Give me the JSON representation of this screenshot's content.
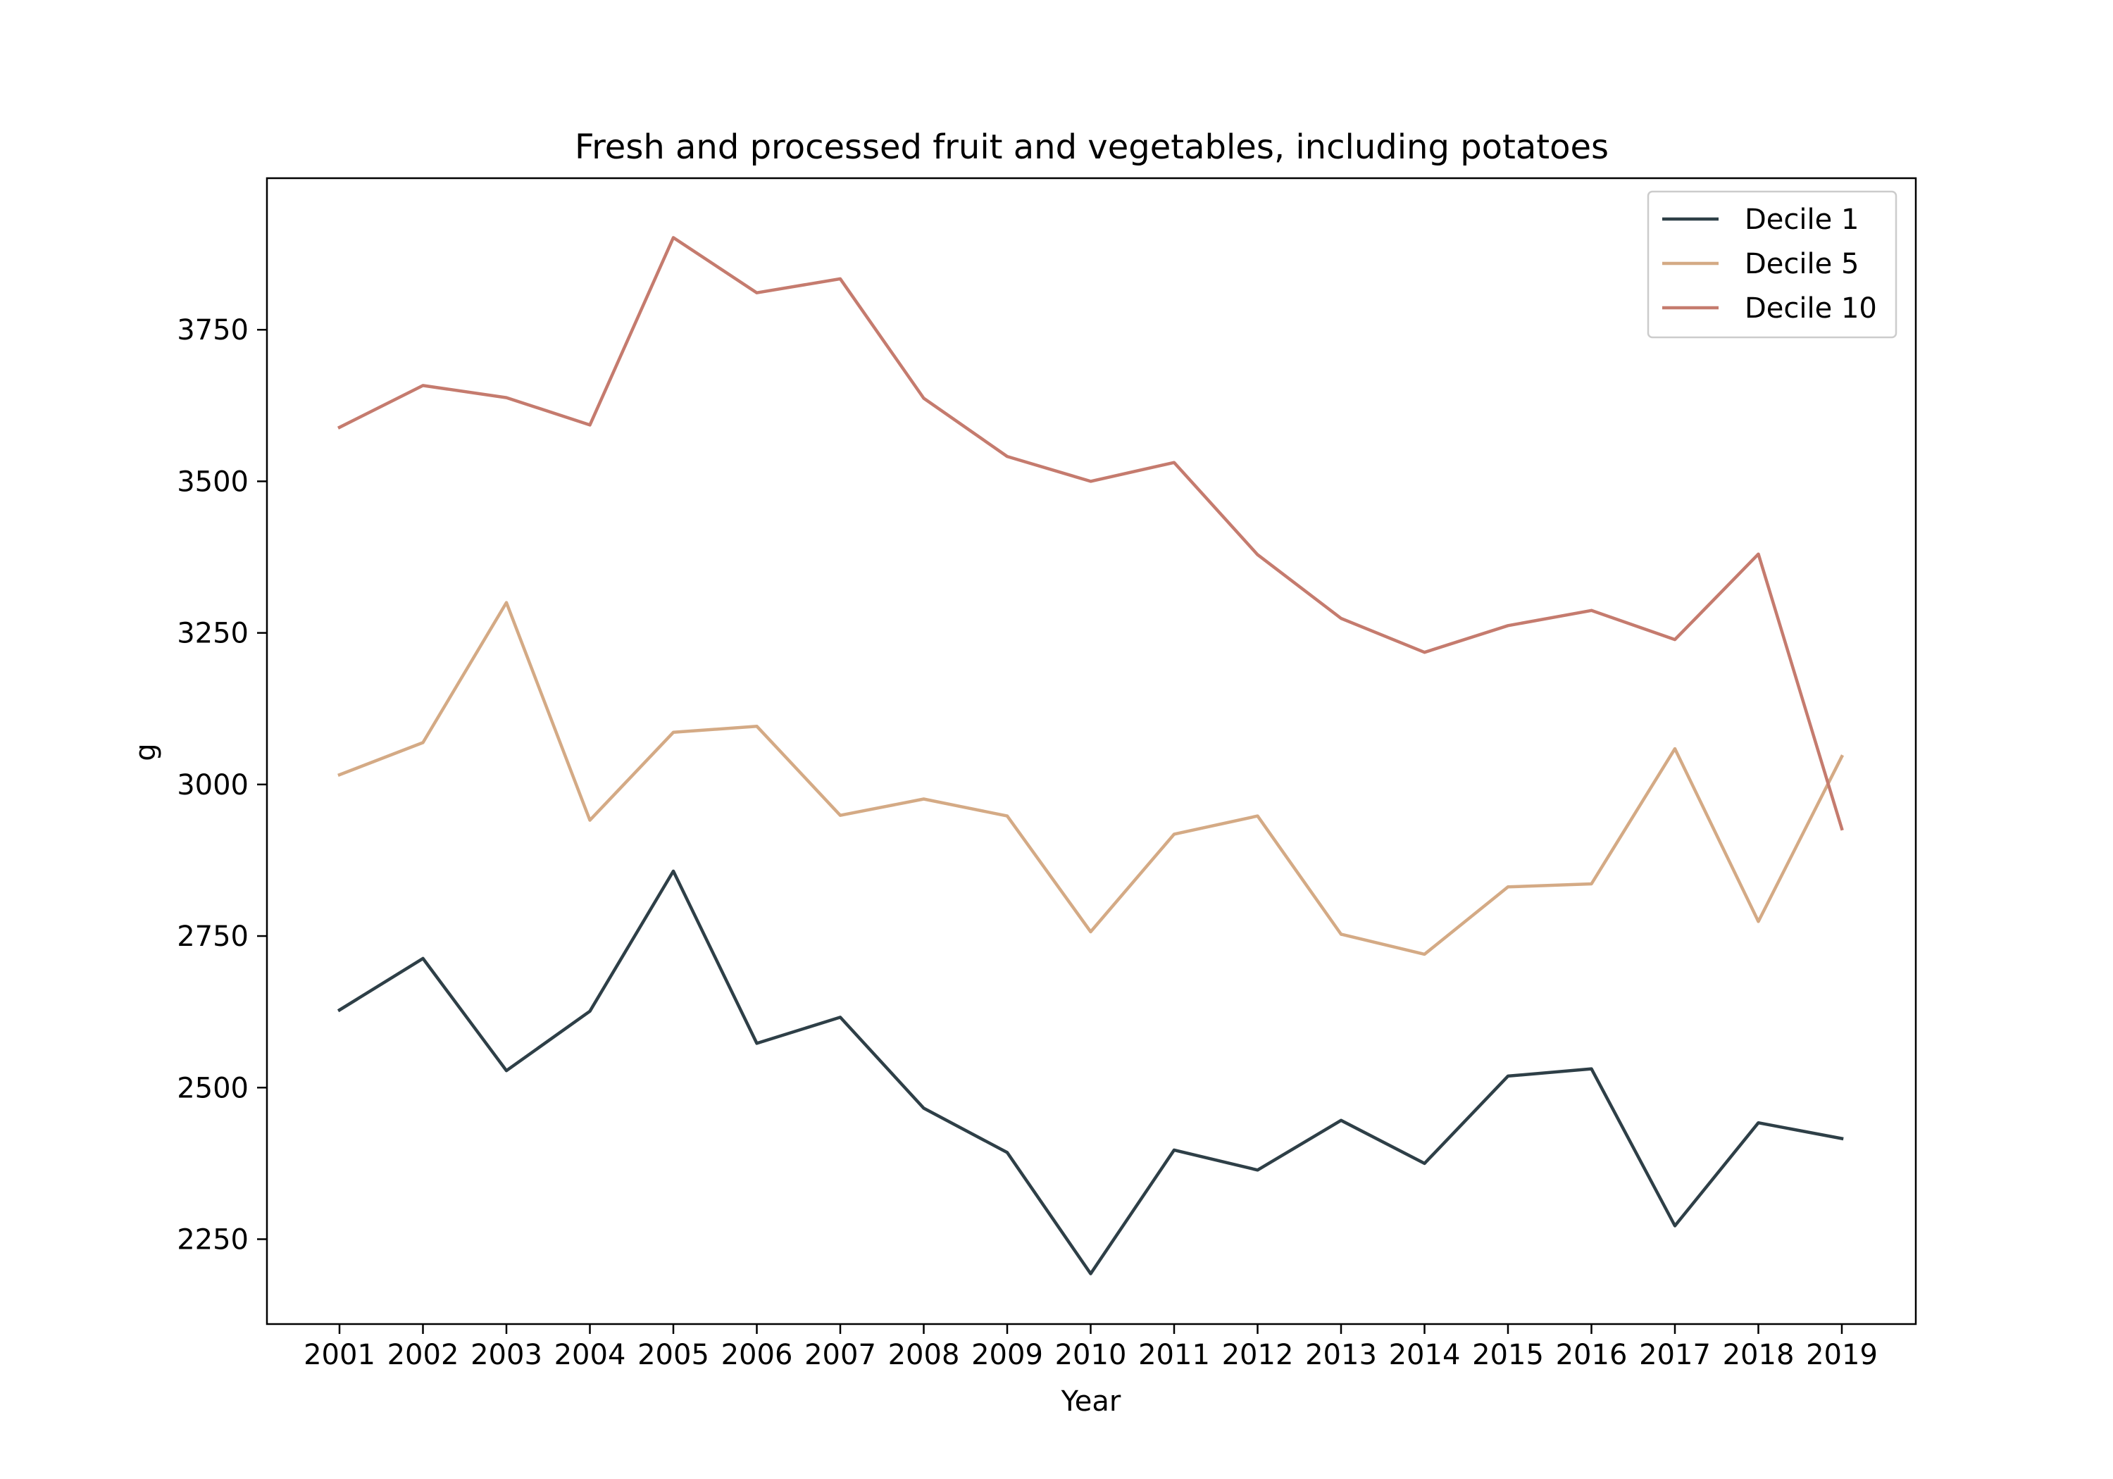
{
  "chart_data": {
    "type": "line",
    "title": "Fresh and processed fruit and vegetables, including potatoes",
    "xlabel": "Year",
    "ylabel": "g",
    "x": [
      "2001",
      "2002",
      "2003",
      "2004",
      "2005",
      "2006",
      "2007",
      "2008",
      "2009",
      "2010",
      "2011",
      "2012",
      "2013",
      "2014",
      "2015",
      "2016",
      "2017",
      "2018",
      "2019"
    ],
    "ylim": [
      2110,
      4000
    ],
    "yticks": [
      "2250",
      "2500",
      "2750",
      "3000",
      "3250",
      "3500",
      "3750"
    ],
    "grid": false,
    "legend_position": "top-right",
    "series": [
      {
        "name": "Decile 1",
        "color": "#2e3f47",
        "values": [
          2628,
          2713,
          2528,
          2626,
          2857,
          2573,
          2616,
          2466,
          2393,
          2193,
          2397,
          2364,
          2446,
          2375,
          2519,
          2531,
          2272,
          2442,
          2416
        ]
      },
      {
        "name": "Decile 5",
        "color": "#d4aa85",
        "values": [
          3016,
          3069,
          3300,
          2941,
          3086,
          3096,
          2949,
          2976,
          2948,
          2757,
          2918,
          2948,
          2753,
          2720,
          2831,
          2836,
          3059,
          2774,
          3046
        ]
      },
      {
        "name": "Decile 10",
        "color": "#c57b6e",
        "values": [
          3589,
          3658,
          3638,
          3593,
          3902,
          3811,
          3834,
          3637,
          3541,
          3500,
          3531,
          3379,
          3274,
          3218,
          3262,
          3287,
          3239,
          3380,
          2927
        ]
      }
    ]
  }
}
